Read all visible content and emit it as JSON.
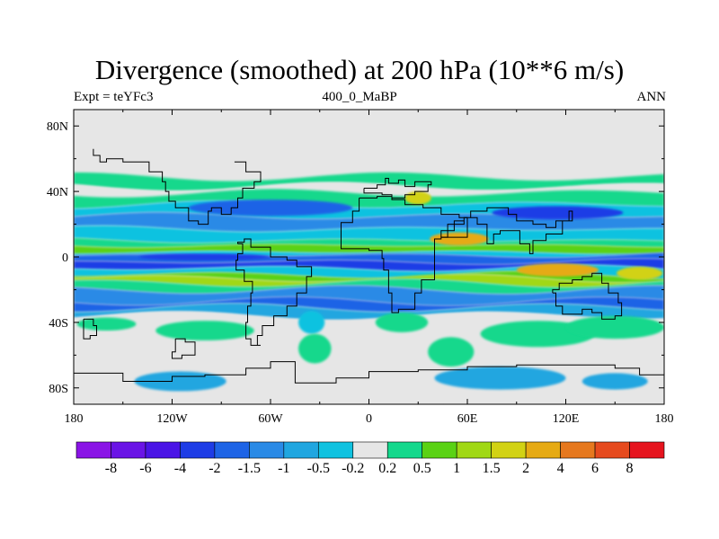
{
  "chart_data": {
    "type": "heatmap",
    "title": "Divergence (smoothed) at 200 hPa (10**6 m/s)",
    "subtitle_left": "Expt = teYFc3",
    "subtitle_center": "400_0_MaBP",
    "subtitle_right": "ANN",
    "x_ticks": [
      {
        "value": -180,
        "label": "180"
      },
      {
        "value": -120,
        "label": "120W"
      },
      {
        "value": -60,
        "label": "60W"
      },
      {
        "value": 0,
        "label": "0"
      },
      {
        "value": 60,
        "label": "60E"
      },
      {
        "value": 120,
        "label": "120E"
      },
      {
        "value": 180,
        "label": "180"
      }
    ],
    "y_ticks": [
      {
        "value": 80,
        "label": "80N"
      },
      {
        "value": 40,
        "label": "40N"
      },
      {
        "value": 0,
        "label": "0"
      },
      {
        "value": -40,
        "label": "40S"
      },
      {
        "value": -80,
        "label": "80S"
      }
    ],
    "xlim": [
      -180,
      180
    ],
    "ylim": [
      -90,
      90
    ],
    "colorbar": {
      "levels": [
        "-8",
        "-6",
        "-4",
        "-2",
        "-1.5",
        "-1",
        "-0.5",
        "-0.2",
        "0.2",
        "0.5",
        "1",
        "1.5",
        "2",
        "4",
        "6",
        "8"
      ],
      "colors": [
        "#8a14e6",
        "#6a14e6",
        "#4a14e6",
        "#1e3ce6",
        "#1e64e6",
        "#2a8ae6",
        "#20a6e0",
        "#10c2e0",
        "#e6e6e6",
        "#14d88c",
        "#5ad214",
        "#a0d814",
        "#d2d214",
        "#e6aa14",
        "#e6781e",
        "#e64a1e",
        "#e6141e"
      ]
    },
    "bands": [
      {
        "lat": 84,
        "color": "#e6e6e6"
      },
      {
        "lat": 49,
        "color": "#14d88c"
      },
      {
        "lat": 43,
        "color": "#e6e6e6"
      },
      {
        "lat": 39,
        "color": "#14d88c"
      },
      {
        "lat": 32,
        "color": "#10c2e0"
      },
      {
        "lat": 25,
        "color": "#2a8ae6"
      },
      {
        "lat": 17,
        "color": "#10c2e0"
      },
      {
        "lat": 10,
        "color": "#14d88c"
      },
      {
        "lat": 7,
        "color": "#5ad214"
      },
      {
        "lat": 3,
        "color": "#10c2e0"
      },
      {
        "lat": 1,
        "color": "#1e64e6"
      },
      {
        "lat": -3,
        "color": "#1e3ce6"
      },
      {
        "lat": -7,
        "color": "#10c2e0"
      },
      {
        "lat": -11,
        "color": "#5ad214"
      },
      {
        "lat": -13,
        "color": "#a0d814"
      },
      {
        "lat": -16,
        "color": "#14d88c"
      },
      {
        "lat": -20,
        "color": "#2a8ae6"
      },
      {
        "lat": -27,
        "color": "#1e64e6"
      },
      {
        "lat": -31,
        "color": "#20a6e0"
      },
      {
        "lat": -36,
        "color": "#e6e6e6"
      }
    ],
    "blobs": [
      {
        "lon": -160,
        "lat": -41,
        "rx": 18,
        "ry": 4,
        "color": "#14d88c"
      },
      {
        "lon": -100,
        "lat": -45,
        "rx": 30,
        "ry": 6,
        "color": "#14d88c"
      },
      {
        "lon": -35,
        "lat": -40,
        "rx": 8,
        "ry": 7,
        "color": "#10c2e0"
      },
      {
        "lon": -33,
        "lat": -56,
        "rx": 10,
        "ry": 9,
        "color": "#14d88c"
      },
      {
        "lon": 20,
        "lat": -40,
        "rx": 16,
        "ry": 6,
        "color": "#14d88c"
      },
      {
        "lon": 50,
        "lat": -58,
        "rx": 14,
        "ry": 9,
        "color": "#14d88c"
      },
      {
        "lon": 103,
        "lat": -47,
        "rx": 35,
        "ry": 8,
        "color": "#14d88c"
      },
      {
        "lon": 150,
        "lat": -43,
        "rx": 30,
        "ry": 7,
        "color": "#14d88c"
      },
      {
        "lon": -115,
        "lat": -76,
        "rx": 28,
        "ry": 6,
        "color": "#20a6e0"
      },
      {
        "lon": 80,
        "lat": -74,
        "rx": 40,
        "ry": 7,
        "color": "#20a6e0"
      },
      {
        "lon": 150,
        "lat": -76,
        "rx": 20,
        "ry": 5,
        "color": "#20a6e0"
      },
      {
        "lon": 55,
        "lat": 11,
        "rx": 18,
        "ry": 4,
        "color": "#e6aa14"
      },
      {
        "lon": 115,
        "lat": -8,
        "rx": 25,
        "ry": 4,
        "color": "#e6aa14"
      },
      {
        "lon": 30,
        "lat": 36,
        "rx": 8,
        "ry": 4,
        "color": "#d2d214"
      },
      {
        "lon": 165,
        "lat": -10,
        "rx": 14,
        "ry": 4,
        "color": "#d2d214"
      },
      {
        "lon": -60,
        "lat": 30,
        "rx": 50,
        "ry": 5,
        "color": "#1e64e6"
      },
      {
        "lon": 115,
        "lat": 27,
        "rx": 40,
        "ry": 4,
        "color": "#1e3ce6"
      },
      {
        "lon": -100,
        "lat": 0,
        "rx": 40,
        "ry": 2,
        "color": "#1e3ce6"
      }
    ],
    "coast": [
      [
        [
          -3,
          42
        ],
        [
          5,
          44
        ],
        [
          10,
          48
        ],
        [
          12,
          45
        ],
        [
          18,
          47
        ],
        [
          22,
          43
        ],
        [
          28,
          46
        ],
        [
          38,
          44
        ],
        [
          36,
          40
        ],
        [
          28,
          38
        ],
        [
          22,
          36
        ],
        [
          14,
          38
        ],
        [
          8,
          39
        ],
        [
          0,
          39
        ],
        [
          -3,
          42
        ]
      ],
      [
        [
          -6,
          36
        ],
        [
          5,
          37
        ],
        [
          14,
          35
        ],
        [
          22,
          32
        ],
        [
          33,
          30
        ],
        [
          44,
          26
        ],
        [
          55,
          24
        ],
        [
          60,
          12
        ],
        [
          52,
          12
        ],
        [
          44,
          11
        ],
        [
          40,
          4
        ],
        [
          40,
          -5
        ],
        [
          40,
          -14
        ],
        [
          32,
          -22
        ],
        [
          28,
          -32
        ],
        [
          18,
          -34
        ],
        [
          14,
          -22
        ],
        [
          12,
          -8
        ],
        [
          9,
          -1
        ],
        [
          8,
          4
        ],
        [
          0,
          5
        ],
        [
          -10,
          5
        ],
        [
          -17,
          10
        ],
        [
          -17,
          21
        ],
        [
          -10,
          28
        ],
        [
          -6,
          36
        ]
      ],
      [
        [
          44,
          12
        ],
        [
          48,
          20
        ],
        [
          58,
          24
        ],
        [
          62,
          28
        ],
        [
          72,
          30
        ],
        [
          78,
          30
        ],
        [
          85,
          26
        ],
        [
          90,
          22
        ],
        [
          96,
          22
        ],
        [
          100,
          20
        ],
        [
          108,
          18
        ],
        [
          114,
          22
        ],
        [
          122,
          28
        ],
        [
          124,
          22
        ],
        [
          118,
          14
        ],
        [
          108,
          10
        ],
        [
          100,
          2
        ],
        [
          98,
          8
        ],
        [
          92,
          16
        ],
        [
          80,
          14
        ],
        [
          76,
          8
        ],
        [
          72,
          20
        ],
        [
          66,
          24
        ],
        [
          58,
          22
        ],
        [
          52,
          16
        ],
        [
          44,
          12
        ]
      ],
      [
        [
          112,
          -22
        ],
        [
          114,
          -30
        ],
        [
          118,
          -35
        ],
        [
          130,
          -32
        ],
        [
          136,
          -34
        ],
        [
          142,
          -38
        ],
        [
          150,
          -36
        ],
        [
          154,
          -28
        ],
        [
          152,
          -22
        ],
        [
          146,
          -16
        ],
        [
          142,
          -10
        ],
        [
          136,
          -12
        ],
        [
          130,
          -14
        ],
        [
          124,
          -16
        ],
        [
          116,
          -20
        ],
        [
          112,
          -22
        ]
      ],
      [
        [
          -80,
          8
        ],
        [
          -77,
          2
        ],
        [
          -80,
          -2
        ],
        [
          -81,
          -8
        ],
        [
          -76,
          -15
        ],
        [
          -71,
          -22
        ],
        [
          -72,
          -30
        ],
        [
          -74,
          -40
        ],
        [
          -75,
          -50
        ],
        [
          -72,
          -54
        ],
        [
          -66,
          -54
        ],
        [
          -68,
          -48
        ],
        [
          -65,
          -42
        ],
        [
          -58,
          -36
        ],
        [
          -50,
          -30
        ],
        [
          -44,
          -22
        ],
        [
          -38,
          -12
        ],
        [
          -35,
          -6
        ],
        [
          -44,
          -2
        ],
        [
          -50,
          0
        ],
        [
          -60,
          6
        ],
        [
          -72,
          11
        ],
        [
          -76,
          9
        ],
        [
          -80,
          8
        ]
      ],
      [
        [
          -180,
          -71
        ],
        [
          -150,
          -76
        ],
        [
          -120,
          -73
        ],
        [
          -100,
          -72
        ],
        [
          -75,
          -68
        ],
        [
          -60,
          -64
        ],
        [
          -45,
          -77
        ],
        [
          -20,
          -74
        ],
        [
          0,
          -70
        ],
        [
          30,
          -69
        ],
        [
          60,
          -67
        ],
        [
          90,
          -66
        ],
        [
          120,
          -66
        ],
        [
          150,
          -68
        ],
        [
          165,
          -72
        ],
        [
          180,
          -78
        ]
      ],
      [
        [
          -82,
          58
        ],
        [
          -75,
          52
        ],
        [
          -66,
          46
        ],
        [
          -70,
          42
        ],
        [
          -77,
          36
        ],
        [
          -80,
          30
        ],
        [
          -84,
          26
        ],
        [
          -90,
          30
        ],
        [
          -96,
          28
        ],
        [
          -98,
          20
        ],
        [
          -100,
          20
        ],
        [
          -104,
          22
        ],
        [
          -110,
          30
        ],
        [
          -118,
          34
        ],
        [
          -122,
          40
        ],
        [
          -124,
          46
        ],
        [
          -126,
          52
        ],
        [
          -134,
          58
        ],
        [
          -150,
          60
        ],
        [
          -160,
          58
        ],
        [
          -164,
          62
        ],
        [
          -168,
          66
        ]
      ],
      [
        [
          -174,
          -38
        ],
        [
          -168,
          -42
        ],
        [
          -166,
          -48
        ],
        [
          -170,
          -50
        ],
        [
          -174,
          -45
        ],
        [
          -174,
          -38
        ]
      ],
      [
        [
          -118,
          -50
        ],
        [
          -112,
          -52
        ],
        [
          -106,
          -60
        ],
        [
          -114,
          -62
        ],
        [
          -120,
          -58
        ],
        [
          -118,
          -50
        ]
      ]
    ]
  }
}
